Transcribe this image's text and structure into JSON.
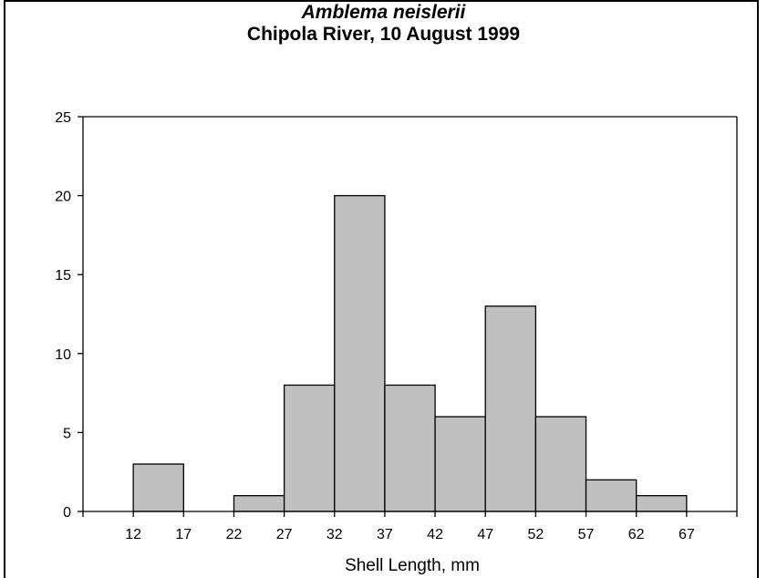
{
  "chart_data": {
    "type": "bar",
    "title": "Amblema neislerii",
    "subtitle": "Chipola River, 10 August 1999",
    "xlabel": "Shell Length, mm",
    "ylabel": "",
    "x_ticks": [
      "12",
      "17",
      "22",
      "27",
      "32",
      "37",
      "42",
      "47",
      "52",
      "57",
      "62",
      "67"
    ],
    "bins": [
      {
        "from": 12,
        "to": 17,
        "value": 3
      },
      {
        "from": 17,
        "to": 22,
        "value": 0
      },
      {
        "from": 22,
        "to": 27,
        "value": 1
      },
      {
        "from": 27,
        "to": 32,
        "value": 8
      },
      {
        "from": 32,
        "to": 37,
        "value": 20
      },
      {
        "from": 37,
        "to": 42,
        "value": 8
      },
      {
        "from": 42,
        "to": 47,
        "value": 6
      },
      {
        "from": 47,
        "to": 52,
        "value": 13
      },
      {
        "from": 52,
        "to": 57,
        "value": 6
      },
      {
        "from": 57,
        "to": 62,
        "value": 2
      },
      {
        "from": 62,
        "to": 67,
        "value": 1
      }
    ],
    "xlim": [
      7,
      72
    ],
    "ylim": [
      0,
      25
    ],
    "y_ticks": [
      0,
      5,
      10,
      15,
      20,
      25
    ],
    "grid": false,
    "bar_color": "#c0c0c0",
    "edge_color": "#000000"
  }
}
